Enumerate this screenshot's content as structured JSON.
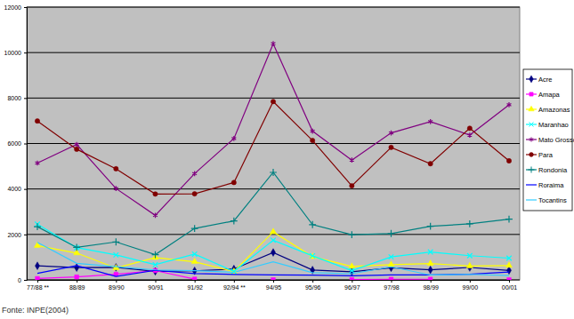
{
  "chart_data": {
    "type": "line",
    "categories": [
      "77/88 **",
      "88/89",
      "89/90",
      "90/91",
      "91/92",
      "92/94 **",
      "94/95",
      "95/96",
      "96/97",
      "97/98",
      "98/99",
      "99/00",
      "00/01"
    ],
    "series": [
      {
        "name": "Acre",
        "color": "#000080",
        "marker": "diamond",
        "values": [
          620,
          540,
          550,
          380,
          400,
          480,
          1208,
          433,
          358,
          536,
          441,
          547,
          419
        ]
      },
      {
        "name": "Amapa",
        "color": "#ff00ff",
        "marker": "square",
        "values": [
          60,
          130,
          250,
          410,
          36,
          null,
          9,
          null,
          18,
          30,
          30,
          null,
          7
        ]
      },
      {
        "name": "Amazonas",
        "color": "#ffff00",
        "marker": "triangle",
        "values": [
          1510,
          1180,
          520,
          980,
          799,
          370,
          2114,
          1023,
          589,
          670,
          720,
          612,
          634
        ]
      },
      {
        "name": "Maranhao",
        "color": "#00ffff",
        "marker": "x",
        "values": [
          2450,
          1420,
          1100,
          670,
          1135,
          372,
          1745,
          1061,
          409,
          1012,
          1230,
          1065,
          958
        ]
      },
      {
        "name": "Mato Grosso",
        "color": "#800080",
        "marker": "star",
        "values": [
          5140,
          5960,
          4020,
          2840,
          4674,
          6220,
          10391,
          6543,
          5271,
          6466,
          6963,
          6369,
          7703
        ]
      },
      {
        "name": "Para",
        "color": "#800000",
        "marker": "circle",
        "values": [
          6990,
          5750,
          4890,
          3780,
          3787,
          4284,
          7845,
          6135,
          4139,
          5829,
          5111,
          6671,
          5237
        ]
      },
      {
        "name": "Rondonia",
        "color": "#008080",
        "marker": "plus",
        "values": [
          2340,
          1430,
          1670,
          1110,
          2265,
          2595,
          4730,
          2432,
          1986,
          2041,
          2358,
          2465,
          2673
        ]
      },
      {
        "name": "Roraima",
        "color": "#0000ff",
        "marker": "none",
        "values": [
          290,
          630,
          150,
          420,
          281,
          240,
          220,
          214,
          184,
          223,
          220,
          253,
          345
        ]
      },
      {
        "name": "Tocantins",
        "color": "#33ccff",
        "marker": "none",
        "values": [
          1650,
          730,
          580,
          440,
          409,
          333,
          797,
          320,
          273,
          576,
          216,
          244,
          189
        ]
      }
    ],
    "ylim": [
      0,
      12000
    ],
    "yticks": [
      0,
      2000,
      4000,
      6000,
      8000,
      10000,
      12000
    ],
    "grid": true,
    "legend": "right",
    "annotations": [
      "Fonte: INPE(2004)"
    ]
  }
}
